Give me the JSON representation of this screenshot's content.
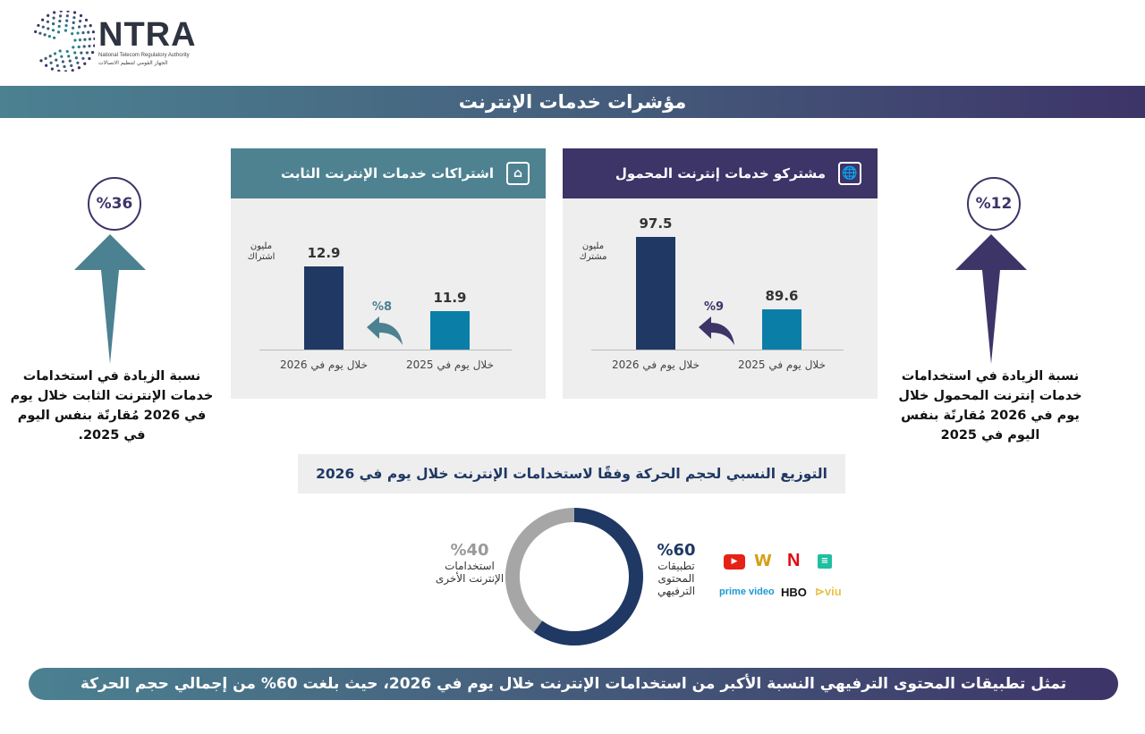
{
  "logo": {
    "text": "NTRA",
    "subtitle_en": "National Telecom Regulatory Authority",
    "subtitle_ar": "الجهاز القومي لتنظيم الاتصالات"
  },
  "header": {
    "title": "مؤشرات خدمات الإنترنت"
  },
  "left_side": {
    "percent": "%36",
    "text": "نسبة الزيادة في استخدامات خدمات الإنترنت الثابت خلال يوم في 2026 مُقارنًة بنفس اليوم في 2025.",
    "color": "#4b8191"
  },
  "right_side": {
    "percent": "%12",
    "text": "نسبة الزيادة في استخدامات خدمات إنترنت المحمول خلال يوم في 2026 مُقارنًة بنفس اليوم في 2025",
    "color": "#3d3468"
  },
  "chart_data": [
    {
      "type": "bar",
      "title": "اشتراكات خدمات الإنترنت الثابت",
      "unit": "مليون اشتراك",
      "categories": [
        "خلال يوم في 2026",
        "خلال يوم في 2025"
      ],
      "values": [
        12.9,
        11.9
      ],
      "value_labels": [
        "12.9",
        "11.9"
      ],
      "growth_label": "%8",
      "colors": [
        "#1f3864",
        "#0b7ea8"
      ],
      "header_color": "#4e8290",
      "icon": "home-wifi-icon"
    },
    {
      "type": "bar",
      "title": "مشتركو خدمات إنترنت المحمول",
      "unit": "مليون مشترك",
      "categories": [
        "خلال يوم في 2026",
        "خلال يوم في 2025"
      ],
      "values": [
        97.5,
        89.6
      ],
      "value_labels": [
        "97.5",
        "89.6"
      ],
      "growth_label": "%9",
      "colors": [
        "#1f3864",
        "#0b7ea8"
      ],
      "header_color": "#3d3468",
      "icon": "mobile-globe-icon"
    },
    {
      "type": "pie",
      "title": "التوزيع النسبي لحجم الحركة وفقًا لاستخدامات الإنترنت خلال يوم في 2026",
      "slices": [
        {
          "label": "تطبيقات المحتوى الترفيهي",
          "value": 60,
          "display": "%60",
          "color": "#1f3864"
        },
        {
          "label": "استخدامات الإنترنت الأخرى",
          "value": 40,
          "display": "%40",
          "color": "#a6a6a6"
        }
      ]
    }
  ],
  "apps": {
    "items": [
      "YouTube",
      "W",
      "N",
      "prime video",
      "HBO",
      "viu"
    ]
  },
  "footer": {
    "text": "تمثل تطبيقات المحتوى الترفيهي النسبة الأكبر من استخدامات الإنترنت خلال يوم في 2026، حيث بلغت 60% من إجمالي حجم الحركة"
  }
}
